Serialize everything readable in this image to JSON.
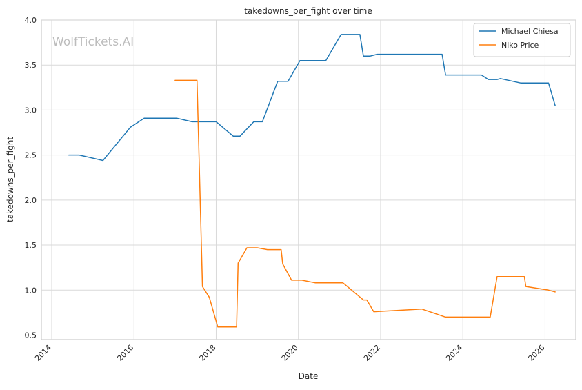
{
  "chart_data": {
    "type": "line",
    "title": "takedowns_per_fight over time",
    "xlabel": "Date",
    "ylabel": "takedowns_per_fight",
    "watermark": "WolfTickets.AI",
    "x_axis_type": "date",
    "xlim": [
      "2013-10-01",
      "2026-10-01"
    ],
    "ylim": [
      0.45,
      4.0
    ],
    "x_ticks": [
      "2014",
      "2016",
      "2018",
      "2020",
      "2022",
      "2024",
      "2026"
    ],
    "y_ticks": [
      "0.5",
      "1.0",
      "1.5",
      "2.0",
      "2.5",
      "3.0",
      "3.5",
      "4.0"
    ],
    "grid": true,
    "legend_position": "top-right",
    "series": [
      {
        "name": "Michael Chiesa",
        "color": "#1f77b4",
        "points": [
          [
            "2014-06-01",
            2.5
          ],
          [
            "2014-09-01",
            2.5
          ],
          [
            "2015-04-01",
            2.44
          ],
          [
            "2015-12-01",
            2.81
          ],
          [
            "2016-04-01",
            2.91
          ],
          [
            "2017-01-15",
            2.91
          ],
          [
            "2017-06-01",
            2.87
          ],
          [
            "2018-01-01",
            2.87
          ],
          [
            "2018-06-01",
            2.71
          ],
          [
            "2018-08-01",
            2.71
          ],
          [
            "2018-12-01",
            2.87
          ],
          [
            "2019-02-15",
            2.87
          ],
          [
            "2019-07-01",
            3.32
          ],
          [
            "2019-10-01",
            3.32
          ],
          [
            "2020-01-15",
            3.55
          ],
          [
            "2020-09-01",
            3.55
          ],
          [
            "2021-01-15",
            3.84
          ],
          [
            "2021-07-01",
            3.84
          ],
          [
            "2021-08-01",
            3.6
          ],
          [
            "2021-10-01",
            3.6
          ],
          [
            "2021-12-01",
            3.62
          ],
          [
            "2023-07-01",
            3.62
          ],
          [
            "2023-08-01",
            3.39
          ],
          [
            "2024-06-15",
            3.39
          ],
          [
            "2024-08-15",
            3.34
          ],
          [
            "2024-11-01",
            3.34
          ],
          [
            "2024-12-01",
            3.35
          ],
          [
            "2025-06-01",
            3.3
          ],
          [
            "2026-02-01",
            3.3
          ],
          [
            "2026-04-01",
            3.05
          ]
        ]
      },
      {
        "name": "Niko Price",
        "color": "#ff7f0e",
        "points": [
          [
            "2017-01-01",
            3.33
          ],
          [
            "2017-07-15",
            3.33
          ],
          [
            "2017-09-01",
            1.04
          ],
          [
            "2017-11-01",
            0.92
          ],
          [
            "2018-01-15",
            0.59
          ],
          [
            "2018-07-01",
            0.59
          ],
          [
            "2018-07-15",
            1.3
          ],
          [
            "2018-10-01",
            1.47
          ],
          [
            "2019-01-01",
            1.47
          ],
          [
            "2019-04-01",
            1.45
          ],
          [
            "2019-08-01",
            1.45
          ],
          [
            "2019-08-15",
            1.29
          ],
          [
            "2019-11-01",
            1.11
          ],
          [
            "2020-02-01",
            1.11
          ],
          [
            "2020-06-01",
            1.08
          ],
          [
            "2020-10-01",
            1.08
          ],
          [
            "2021-02-01",
            1.08
          ],
          [
            "2021-08-01",
            0.89
          ],
          [
            "2021-09-01",
            0.89
          ],
          [
            "2021-11-01",
            0.76
          ],
          [
            "2023-01-01",
            0.79
          ],
          [
            "2023-08-01",
            0.7
          ],
          [
            "2024-09-01",
            0.7
          ],
          [
            "2024-11-01",
            1.15
          ],
          [
            "2025-04-01",
            1.15
          ],
          [
            "2025-07-01",
            1.15
          ],
          [
            "2025-07-15",
            1.04
          ],
          [
            "2026-02-01",
            1.0
          ],
          [
            "2026-04-01",
            0.98
          ]
        ]
      }
    ]
  }
}
